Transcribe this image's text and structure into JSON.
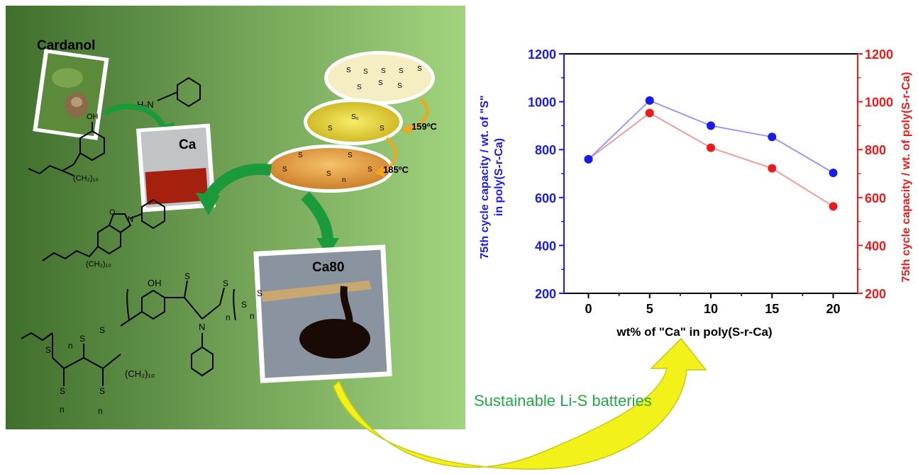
{
  "scheme": {
    "labels": {
      "cardanol": "Cardanol",
      "ca": "Ca",
      "ca80": "Ca80",
      "temp1": "159ºC",
      "temp2": "185ºC"
    },
    "chem_text": {
      "h2n": "H₂N",
      "oh": "OH",
      "ch2_10": "(CH₂)₁₀",
      "s": "S",
      "s6": "S₆",
      "n": "n",
      "o": "O",
      "N": "N"
    },
    "caption": "Sustainable Li-S batteries",
    "colors": {
      "green_dark": "#3f6f2c",
      "green_light": "#9bcf7a",
      "arrow_green": "#1a9a3a",
      "arrow_yellow": "#f2f21a",
      "arrow_orange": "#f2a61a",
      "caption_green": "#22aa44"
    }
  },
  "chart_data": {
    "type": "line",
    "x": [
      0,
      5,
      10,
      15,
      20
    ],
    "xlabel": "wt% of \"Ca\" in poly(S-r-Ca)",
    "xlim": [
      -2,
      22
    ],
    "xticks": [
      "0",
      "5",
      "10",
      "15",
      "20"
    ],
    "ylabel_left_line1": "75th cycle capacity  / wt. of \"S\"",
    "ylabel_left_line2": "in poly(S-r-Ca)",
    "ylabel_right": "75th cycle capacity  / wt. of poly(S-r-Ca)",
    "ylim": [
      200,
      1200
    ],
    "yticks": [
      "200",
      "400",
      "600",
      "800",
      "1000",
      "1200"
    ],
    "grid": false,
    "series": [
      {
        "axis": "left",
        "color": "#1a1aee",
        "values": [
          760,
          1005,
          900,
          853,
          703
        ]
      },
      {
        "axis": "right",
        "color": "#ee1a1a",
        "values": [
          760,
          953,
          808,
          722,
          563
        ]
      }
    ]
  }
}
